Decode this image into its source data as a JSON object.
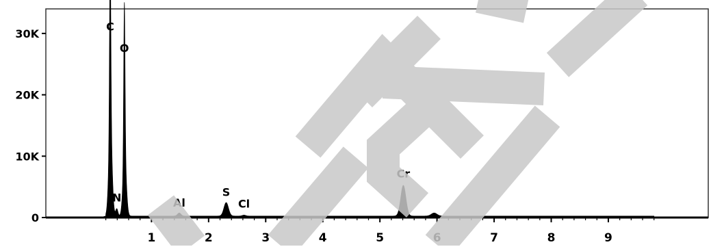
{
  "chart_data": {
    "type": "area",
    "title": "",
    "xlabel": "",
    "ylabel": "",
    "xlim": [
      -0.85,
      10.75
    ],
    "ylim": [
      0,
      34000
    ],
    "xticks": [
      1,
      2,
      3,
      4,
      5,
      6,
      7,
      8,
      9
    ],
    "yticks": [
      {
        "value": 0,
        "label": "0"
      },
      {
        "value": 10000,
        "label": "10K"
      },
      {
        "value": 20000,
        "label": "20K"
      },
      {
        "value": 30000,
        "label": "30K"
      }
    ],
    "grid": false,
    "fill_color": "#000000",
    "series": [
      {
        "peaks": [
          {
            "x": 0.277,
            "y": 29000,
            "width": 0.012
          },
          {
            "x": 0.281,
            "y": 14000,
            "width": 0.03
          },
          {
            "x": 0.392,
            "y": 1200,
            "width": 0.02
          },
          {
            "x": 0.525,
            "y": 25500,
            "width": 0.012
          },
          {
            "x": 0.53,
            "y": 9500,
            "width": 0.03
          },
          {
            "x": 1.486,
            "y": 500,
            "width": 0.03
          },
          {
            "x": 2.308,
            "y": 2200,
            "width": 0.04
          },
          {
            "x": 2.62,
            "y": 150,
            "width": 0.03
          },
          {
            "x": 5.41,
            "y": 5000,
            "width": 0.045
          },
          {
            "x": 5.95,
            "y": 500,
            "width": 0.05
          }
        ],
        "baseline": 250
      }
    ],
    "annotations": [
      {
        "text": "C",
        "x": 0.277,
        "y": 30500
      },
      {
        "text": "N",
        "x": 0.392,
        "y": 2600
      },
      {
        "text": "O",
        "x": 0.525,
        "y": 27000
      },
      {
        "text": "Al",
        "x": 1.486,
        "y": 1800
      },
      {
        "text": "S",
        "x": 2.308,
        "y": 3500
      },
      {
        "text": "Cl",
        "x": 2.62,
        "y": 1600
      },
      {
        "text": "Cr",
        "x": 5.41,
        "y": 6500
      }
    ]
  },
  "watermark": {
    "color": "#c8c8c8"
  }
}
